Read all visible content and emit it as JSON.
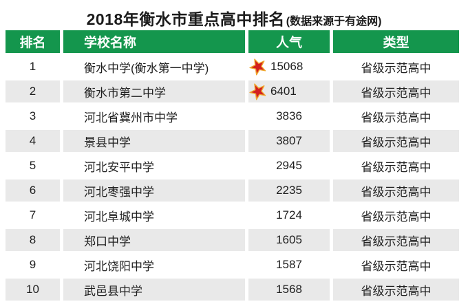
{
  "title": {
    "main": "2018年衡水市重点高中排名",
    "suffix": "(数据来源于有途网)"
  },
  "table": {
    "headers": [
      "排名",
      "学校名称",
      "人气",
      "类型"
    ],
    "rows": [
      {
        "rank": "1",
        "school": "衡水中学(衡水第一中学)",
        "popularity": "15068",
        "type": "省级示范高中",
        "starred": true
      },
      {
        "rank": "2",
        "school": "衡水市第二中学",
        "popularity": "6401",
        "type": "省级示范高中",
        "starred": true
      },
      {
        "rank": "3",
        "school": "河北省冀州市中学",
        "popularity": "3836",
        "type": "省级示范高中",
        "starred": false
      },
      {
        "rank": "4",
        "school": "景县中学",
        "popularity": "3807",
        "type": "省级示范高中",
        "starred": false
      },
      {
        "rank": "5",
        "school": "河北安平中学",
        "popularity": "2945",
        "type": "省级示范高中",
        "starred": false
      },
      {
        "rank": "6",
        "school": "河北枣强中学",
        "popularity": "2235",
        "type": "省级示范高中",
        "starred": false
      },
      {
        "rank": "7",
        "school": "河北阜城中学",
        "popularity": "1724",
        "type": "省级示范高中",
        "starred": false
      },
      {
        "rank": "8",
        "school": "郑口中学",
        "popularity": "1605",
        "type": "省级示范高中",
        "starred": false
      },
      {
        "rank": "9",
        "school": "河北饶阳中学",
        "popularity": "1587",
        "type": "省级示范高中",
        "starred": false
      },
      {
        "rank": "10",
        "school": "武邑县中学",
        "popularity": "1568",
        "type": "省级示范高中",
        "starred": false
      }
    ]
  },
  "icons": {
    "star": "star-icon"
  },
  "colors": {
    "header_green": "#14964d",
    "row_alt_gray": "#e9e9e9",
    "star_red": "#d32020",
    "star_gold": "#f0a62c",
    "text": "#1f1f1f"
  },
  "chart_data": {
    "type": "table",
    "title": "2018年衡水市重点高中排名(数据来源于有途网)",
    "columns": [
      "排名",
      "学校名称",
      "人气",
      "类型"
    ],
    "rows": [
      [
        1,
        "衡水中学(衡水第一中学)",
        15068,
        "省级示范高中"
      ],
      [
        2,
        "衡水市第二中学",
        6401,
        "省级示范高中"
      ],
      [
        3,
        "河北省冀州市中学",
        3836,
        "省级示范高中"
      ],
      [
        4,
        "景县中学",
        3807,
        "省级示范高中"
      ],
      [
        5,
        "河北安平中学",
        2945,
        "省级示范高中"
      ],
      [
        6,
        "河北枣强中学",
        2235,
        "省级示范高中"
      ],
      [
        7,
        "河北阜城中学",
        1724,
        "省级示范高中"
      ],
      [
        8,
        "郑口中学",
        1605,
        "省级示范高中"
      ],
      [
        9,
        "河北饶阳中学",
        1587,
        "省级示范高中"
      ],
      [
        10,
        "武邑县中学",
        1568,
        "省级示范高中"
      ]
    ],
    "starred_rows": [
      1,
      2
    ],
    "layout": {
      "zebra_stripes": true,
      "header_background": "#14964d"
    }
  }
}
